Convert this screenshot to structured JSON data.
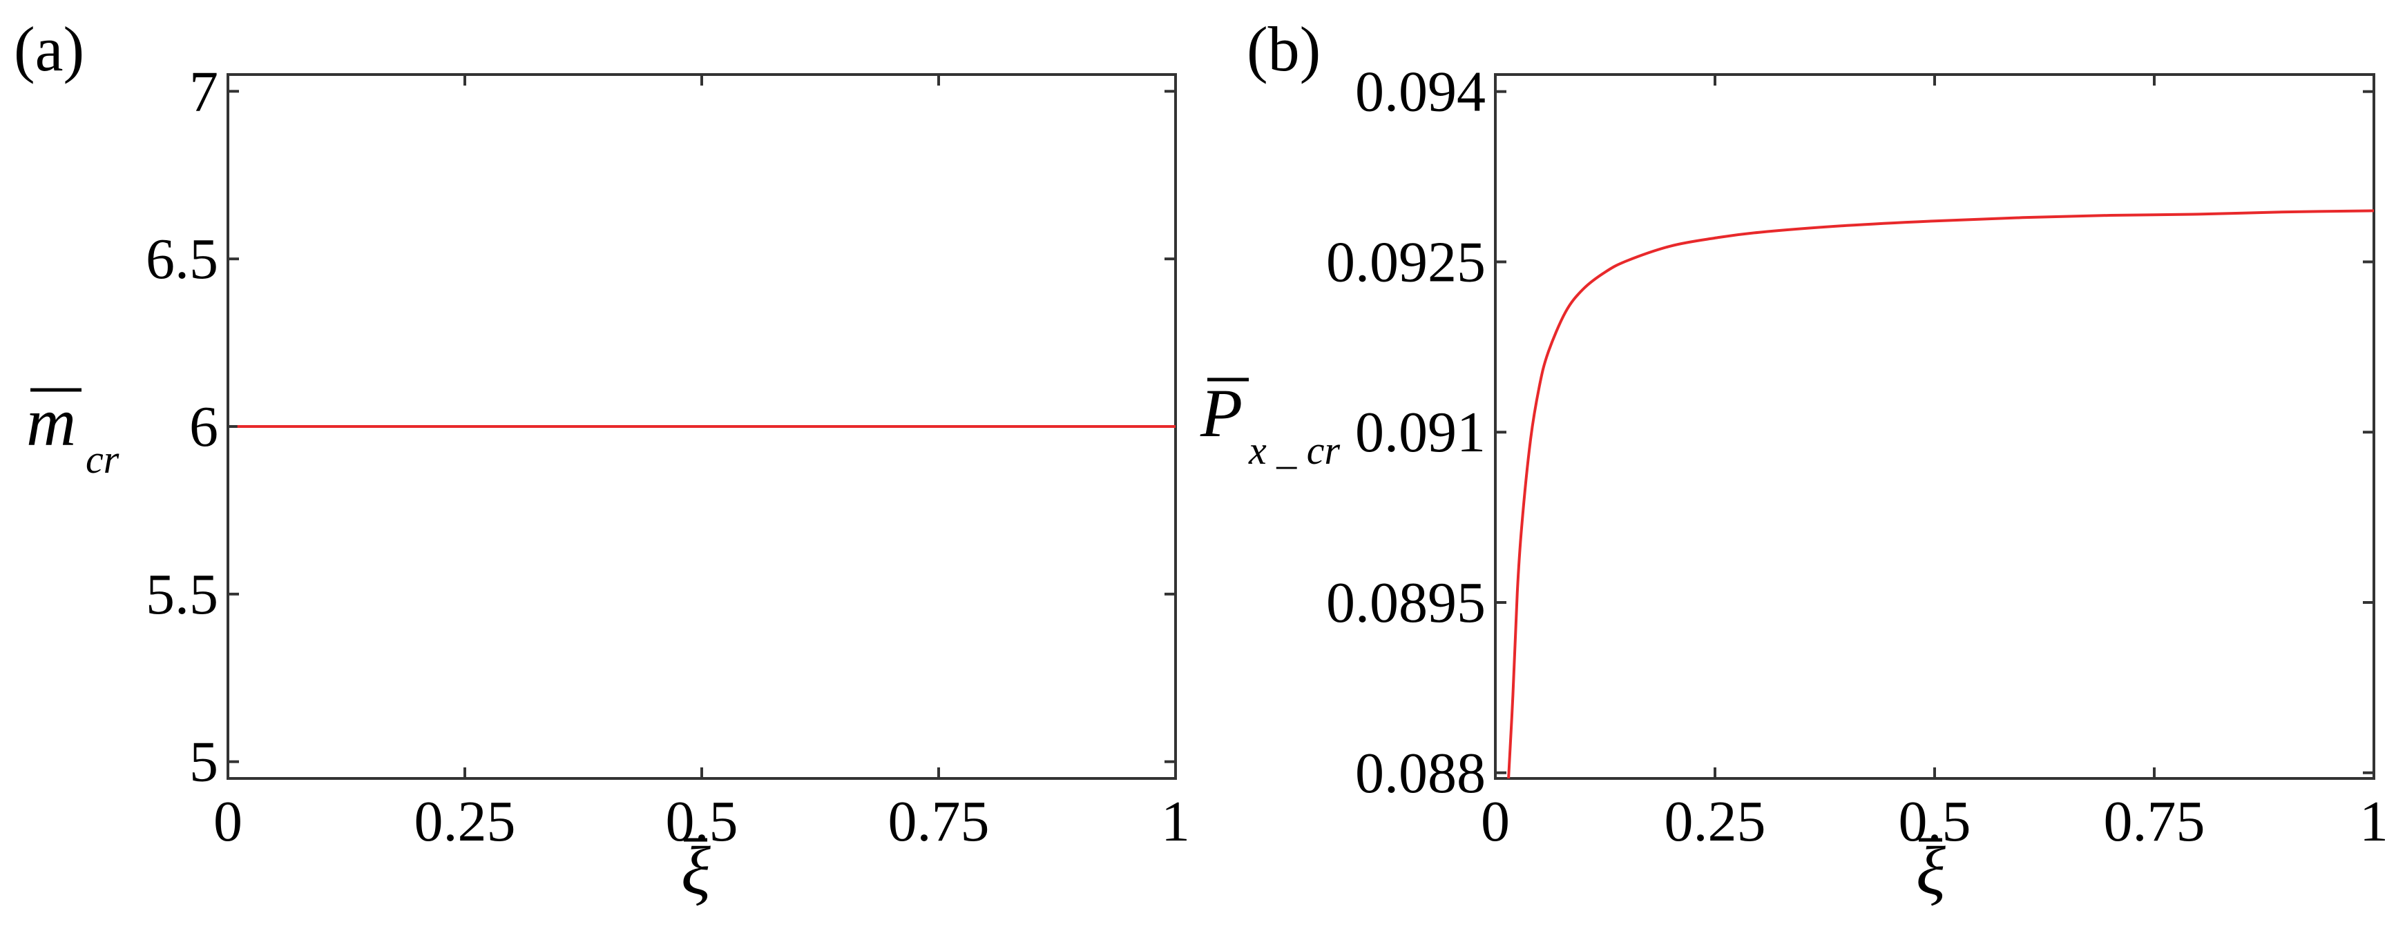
{
  "panels": [
    {
      "label": "(a)",
      "xlabel_symbol": "ξ",
      "ylabel_symbol": "m",
      "ylabel_sub": "cr",
      "xticks": [
        "0",
        "0.25",
        "0.5",
        "0.75",
        "1"
      ],
      "yticks": [
        "5",
        "5.5",
        "6",
        "6.5",
        "7"
      ]
    },
    {
      "label": "(b)",
      "xlabel_symbol": "ξ",
      "ylabel_symbol": "P",
      "ylabel_sub": "x _ cr",
      "xticks": [
        "0",
        "0.25",
        "0.5",
        "0.75",
        "1"
      ],
      "yticks": [
        "0.088",
        "0.0895",
        "0.091",
        "0.0925",
        "0.094"
      ]
    }
  ],
  "chart_data": [
    {
      "type": "line",
      "xlim": [
        0,
        1
      ],
      "ylim": [
        4.95,
        7.05
      ],
      "grid": false,
      "line_color": "#e8292b",
      "series": [
        {
          "x": [
            0.01,
            1.0
          ],
          "y": [
            6.0,
            6.0
          ]
        }
      ]
    },
    {
      "type": "line",
      "xlim": [
        0,
        1
      ],
      "ylim": [
        0.08795,
        0.09415
      ],
      "grid": false,
      "line_color": "#e8292b",
      "series": [
        {
          "x": [
            0.015,
            0.02,
            0.025,
            0.03,
            0.04,
            0.05,
            0.06,
            0.08,
            0.1,
            0.125,
            0.15,
            0.2,
            0.25,
            0.3,
            0.4,
            0.5,
            0.6,
            0.7,
            0.8,
            0.9,
            1.0
          ],
          "y": [
            0.08795,
            0.08868,
            0.08959,
            0.09017,
            0.09093,
            0.0914,
            0.0917,
            0.09206,
            0.09226,
            0.09241,
            0.09251,
            0.09264,
            0.09271,
            0.09276,
            0.09282,
            0.09286,
            0.09289,
            0.09291,
            0.09292,
            0.09294,
            0.09295
          ]
        }
      ]
    }
  ]
}
